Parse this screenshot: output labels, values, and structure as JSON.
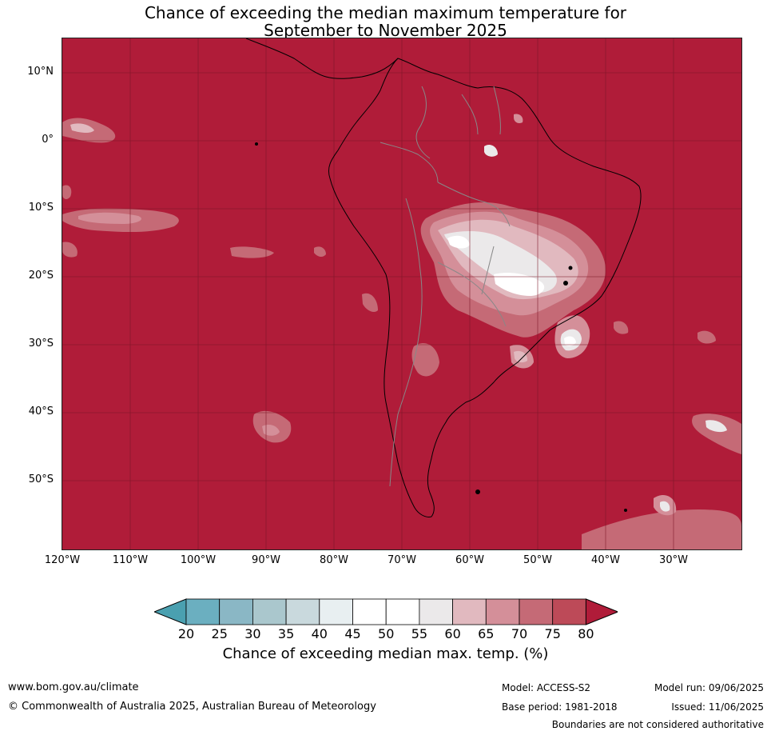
{
  "title_line1": "Chance of exceeding the median maximum temperature for",
  "title_line2": "September to November 2025",
  "lat_labels": [
    "10°N",
    "0°",
    "10°S",
    "20°S",
    "30°S",
    "40°S",
    "50°S"
  ],
  "lon_labels": [
    "120°W",
    "110°W",
    "100°W",
    "90°W",
    "80°W",
    "70°W",
    "60°W",
    "50°W",
    "40°W",
    "30°W"
  ],
  "colorbar": {
    "ticks": [
      "20",
      "25",
      "30",
      "35",
      "40",
      "45",
      "50",
      "55",
      "60",
      "65",
      "70",
      "75",
      "80"
    ],
    "colors": [
      "#4aa0b0",
      "#6bafc0",
      "#8ab7c5",
      "#aac7cd",
      "#c9d9dd",
      "#e8eff1",
      "#ffffff",
      "#ffffff",
      "#ebe9ea",
      "#e1b9bf",
      "#d48f99",
      "#c56a76",
      "#bd4a58",
      "#b01c39"
    ],
    "label": "Chance of exceeding median max. temp. (%)"
  },
  "map": {
    "base_color": "#b01c39",
    "extent": {
      "lon": [
        -120,
        -20
      ],
      "lat": [
        -60,
        15
      ]
    }
  },
  "footer": {
    "website": "www.bom.gov.au/climate",
    "copyright": "© Commonwealth of Australia 2025, Australian Bureau of Meteorology",
    "model": "Model: ACCESS-S2",
    "base_period": "Base period: 1981-2018",
    "model_run": "Model run: 09/06/2025",
    "issued": "Issued: 11/06/2025",
    "disclaimer": "Boundaries are not considered authoritative"
  }
}
